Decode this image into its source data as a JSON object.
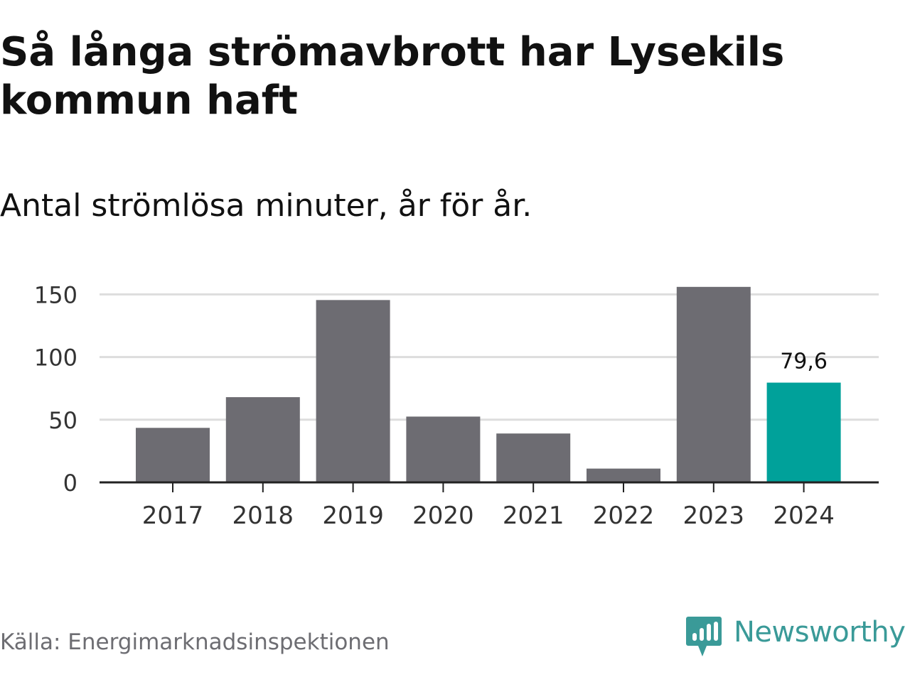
{
  "title": "Så långa strömavbrott har Lysekils kommun haft",
  "subtitle": "Antal strömlösa minuter, år för år.",
  "source": "Källa: Energimarknadsinspektionen",
  "brand": {
    "name": "Newsworthy",
    "icon": "newsworthy-chart-bubble-icon",
    "color": "#3a9a98"
  },
  "colors": {
    "bar": "#6d6c72",
    "highlight": "#00a19a",
    "grid": "#dddddd",
    "axis": "#222222"
  },
  "chart_data": {
    "type": "bar",
    "categories": [
      "2017",
      "2018",
      "2019",
      "2020",
      "2021",
      "2022",
      "2023",
      "2024"
    ],
    "values": [
      43.5,
      68,
      145.5,
      52.5,
      39,
      11,
      156,
      79.6
    ],
    "highlight_index": 7,
    "data_labels": [
      "",
      "",
      "",
      "",
      "",
      "",
      "",
      "79,6"
    ],
    "yticks": [
      0,
      50,
      100,
      150
    ],
    "ytick_labels": [
      "0",
      "50",
      "100",
      "150"
    ],
    "ylim": [
      0,
      160
    ],
    "grid": true,
    "xlabel": "",
    "ylabel": ""
  }
}
